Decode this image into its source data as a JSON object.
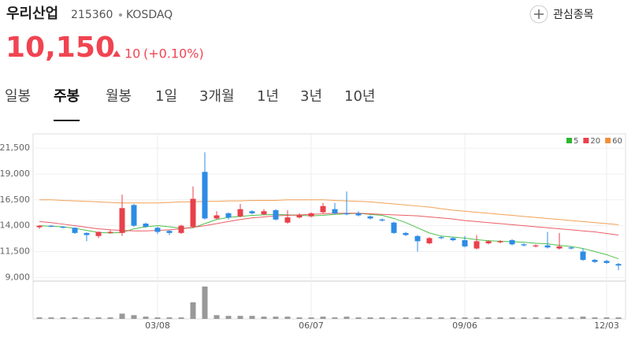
{
  "header": {
    "name": "우리산업",
    "code": "215360",
    "market": "KOSDAQ",
    "watch": "관심종목"
  },
  "price": {
    "value": "10,150",
    "change": "10",
    "change_pct": "(+0.10%)"
  },
  "tabs": {
    "items": [
      "일봉",
      "주봉",
      "월봉",
      "1일",
      "3개월",
      "1년",
      "3년",
      "10년"
    ],
    "selected": 1
  },
  "chart_data": {
    "type": "candlestick",
    "categories": [
      null,
      null,
      null,
      null,
      null,
      null,
      null,
      null,
      null,
      null,
      "03/08",
      null,
      null,
      null,
      null,
      null,
      null,
      null,
      null,
      null,
      null,
      null,
      null,
      "06/07",
      null,
      null,
      null,
      null,
      null,
      null,
      null,
      null,
      null,
      null,
      null,
      null,
      "09/06",
      null,
      null,
      null,
      null,
      null,
      null,
      null,
      null,
      null,
      null,
      null,
      "12/03",
      null
    ],
    "open": [
      13850,
      14000,
      13900,
      13800,
      13300,
      13000,
      13300,
      13300,
      16000,
      14200,
      13800,
      13500,
      13300,
      13900,
      19200,
      14700,
      15200,
      14900,
      15400,
      15100,
      15500,
      14300,
      14800,
      14900,
      15300,
      15600,
      15200,
      15200,
      14900,
      14600,
      14300,
      13300,
      13000,
      12300,
      12900,
      12800,
      12600,
      11800,
      12300,
      12400,
      12600,
      12200,
      12000,
      12100,
      11800,
      11900,
      11500,
      10700,
      10600,
      10300
    ],
    "close": [
      14000,
      13900,
      13800,
      13300,
      13100,
      13400,
      13400,
      15700,
      14000,
      13900,
      13400,
      13300,
      14000,
      16600,
      14700,
      15000,
      14800,
      15600,
      15200,
      15400,
      14600,
      14800,
      15000,
      15200,
      15900,
      15200,
      15100,
      15000,
      14700,
      14500,
      13300,
      13100,
      12500,
      12800,
      12800,
      12600,
      12000,
      12500,
      12500,
      12500,
      12200,
      12100,
      12100,
      11900,
      12000,
      11800,
      10700,
      10500,
      10400,
      10150
    ],
    "high": [
      14050,
      14050,
      13950,
      13850,
      13350,
      13450,
      13600,
      17000,
      16100,
      14300,
      13900,
      13600,
      14100,
      17800,
      21100,
      15400,
      15300,
      16100,
      15500,
      15600,
      15600,
      15500,
      15200,
      15300,
      16200,
      16200,
      17300,
      15400,
      15000,
      14700,
      14400,
      13400,
      13100,
      12900,
      13000,
      12900,
      13000,
      13100,
      12600,
      12600,
      12700,
      12300,
      12200,
      13400,
      13300,
      12000,
      11800,
      10800,
      10700,
      10400
    ],
    "low": [
      13700,
      13850,
      13750,
      13200,
      12500,
      12800,
      13200,
      13000,
      13900,
      13800,
      13200,
      13100,
      13200,
      13800,
      14600,
      14600,
      14600,
      14800,
      15100,
      15000,
      14500,
      14200,
      14700,
      14800,
      15200,
      15100,
      15000,
      14900,
      14600,
      14400,
      13200,
      13000,
      11500,
      12200,
      12700,
      12500,
      11900,
      11700,
      12200,
      12300,
      12100,
      12000,
      11900,
      11800,
      11700,
      11700,
      10600,
      10400,
      10300,
      9700
    ],
    "up_color": "#e8414b",
    "down_color": "#2d8ce6",
    "ylim": [
      8800,
      22800
    ],
    "yticks": [
      {
        "value": 9000,
        "label": "9,000"
      },
      {
        "value": 11500,
        "label": "11,500"
      },
      {
        "value": 14000,
        "label": "14,000"
      },
      {
        "value": 16500,
        "label": "16,500"
      },
      {
        "value": 19000,
        "label": "19,000"
      },
      {
        "value": 21500,
        "label": "21,500"
      }
    ],
    "grid": true,
    "moving_averages": [
      {
        "name": "5",
        "color": "#2db52d",
        "values": [
          14000,
          13950,
          13900,
          13750,
          13550,
          13350,
          13300,
          13350,
          13700,
          13900,
          14000,
          13900,
          13750,
          13800,
          14200,
          14600,
          14800,
          14900,
          15000,
          15050,
          15100,
          15050,
          15000,
          14950,
          15000,
          15100,
          15150,
          15200,
          15100,
          15000,
          14700,
          14300,
          13800,
          13300,
          13000,
          12900,
          12800,
          12650,
          12550,
          12500,
          12450,
          12400,
          12300,
          12250,
          12100,
          12000,
          11800,
          11500,
          11200,
          10800
        ]
      },
      {
        "name": "20",
        "color": "#e8414b",
        "values": [
          14400,
          14300,
          14150,
          14000,
          13850,
          13700,
          13600,
          13550,
          13500,
          13500,
          13550,
          13600,
          13700,
          13850,
          14000,
          14200,
          14400,
          14600,
          14750,
          14850,
          14950,
          15000,
          15050,
          15100,
          15150,
          15200,
          15200,
          15200,
          15150,
          15100,
          15050,
          15000,
          14950,
          14850,
          14750,
          14650,
          14500,
          14400,
          14300,
          14200,
          14100,
          14000,
          13900,
          13800,
          13700,
          13600,
          13500,
          13400,
          13250,
          13100
        ]
      },
      {
        "name": "60",
        "color": "#f0903a",
        "values": [
          16500,
          16500,
          16450,
          16400,
          16350,
          16300,
          16250,
          16200,
          16200,
          16200,
          16200,
          16250,
          16300,
          16300,
          16350,
          16350,
          16400,
          16400,
          16450,
          16450,
          16450,
          16500,
          16500,
          16500,
          16500,
          16450,
          16400,
          16350,
          16300,
          16200,
          16100,
          16000,
          15900,
          15800,
          15650,
          15500,
          15400,
          15300,
          15200,
          15100,
          15000,
          14900,
          14800,
          14700,
          14600,
          14500,
          14400,
          14300,
          14200,
          14100
        ]
      }
    ],
    "volume": {
      "values": [
        2,
        2,
        2,
        2,
        2,
        2,
        2,
        7,
        5,
        3,
        2,
        2,
        2,
        22,
        43,
        5,
        4,
        4,
        4,
        3,
        3,
        3,
        2,
        2,
        3,
        2,
        3,
        2,
        2,
        2,
        2,
        2,
        2,
        2,
        2,
        2,
        2,
        2,
        2,
        2,
        2,
        2,
        2,
        2,
        2,
        2,
        3,
        2,
        2,
        2
      ],
      "ylim": [
        0,
        45
      ],
      "color": "#999999"
    }
  }
}
